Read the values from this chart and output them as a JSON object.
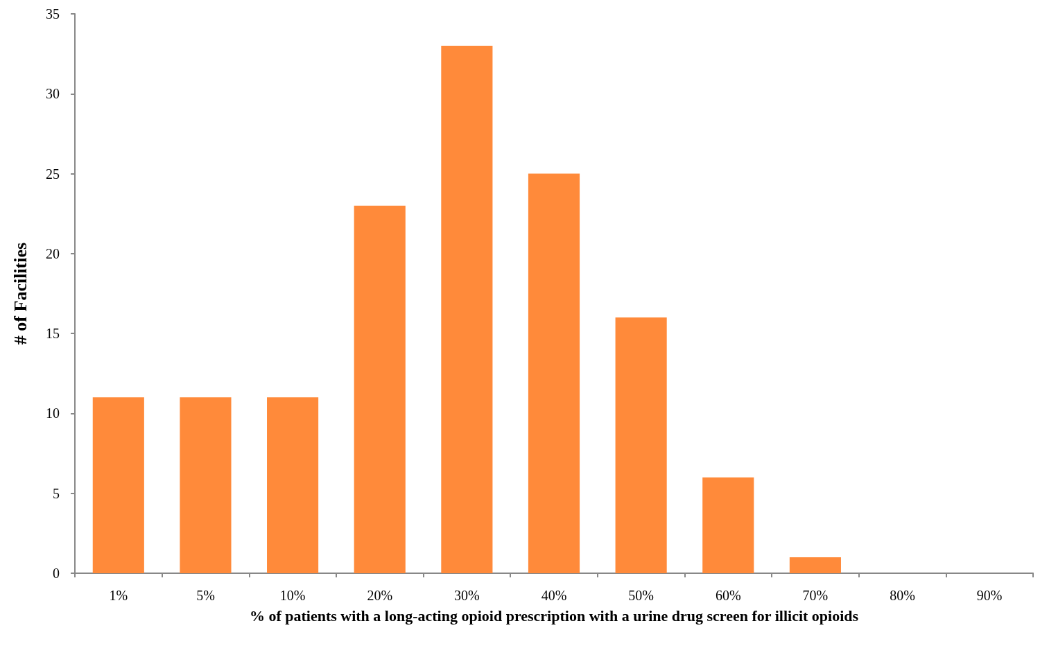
{
  "chart_data": {
    "type": "bar",
    "xlabel": "% of patients with a long-acting opioid prescription with a urine drug screen for illicit opioids",
    "ylabel": "# of Facilities",
    "categories": [
      "1%",
      "5%",
      "10%",
      "20%",
      "30%",
      "40%",
      "50%",
      "60%",
      "70%",
      "80%",
      "90%"
    ],
    "values": [
      11,
      11,
      11,
      23,
      33,
      25,
      16,
      6,
      1,
      0,
      0
    ],
    "color": "#ff8a3a",
    "ylim": [
      0,
      35
    ],
    "yticks": [
      0,
      5,
      10,
      15,
      20,
      25,
      30,
      35
    ],
    "grid": false
  }
}
